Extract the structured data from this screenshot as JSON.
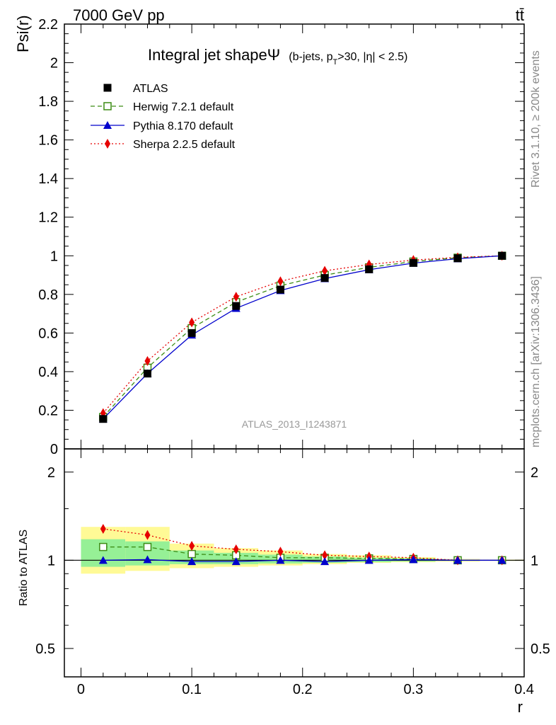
{
  "header": {
    "process": "7000 GeV pp",
    "final_state": "tt̄",
    "rivet_label": "Rivet 3.1.10, ≥ 200k events",
    "mcplots_label": "mcplots.cern.ch [arXiv:1306.3436]",
    "analysis_id": "ATLAS_2013_I1243871"
  },
  "title_main": "Integral jet shapeΨ",
  "title_sub": "(b-jets, p",
  "title_sub_index": "T",
  "title_sub_tail": ">30, |η| < 2.5)",
  "colors": {
    "atlas": "#000000",
    "herwig": "#3c8c14",
    "pythia": "#0000cc",
    "sherpa": "#e60000",
    "band_yellow": "#fffa96",
    "band_green": "#96f096"
  },
  "chart_data": [
    {
      "type": "line",
      "panel": "main",
      "ylabel": "Psi(r)",
      "xlim": [
        -0.015,
        0.4
      ],
      "ylim": [
        0,
        2.2
      ],
      "x_ticks": [
        0,
        0.1,
        0.2,
        0.3,
        0.4
      ],
      "y_ticks": [
        0,
        0.2,
        0.4,
        0.6,
        0.8,
        1,
        1.2,
        1.4,
        1.6,
        1.8,
        2,
        2.2
      ],
      "y_tick_labels": [
        "0",
        "0.2",
        "0.4",
        "0.6",
        "0.8",
        "1",
        "1.2",
        "1.4",
        "1.6",
        "1.8",
        "2",
        "2.2"
      ],
      "legend_position": "top-left",
      "x": [
        0.02,
        0.06,
        0.1,
        0.14,
        0.18,
        0.22,
        0.26,
        0.3,
        0.34,
        0.38
      ],
      "series": [
        {
          "name": "ATLAS",
          "key": "atlas",
          "marker": "square-filled",
          "values": [
            0.155,
            0.39,
            0.6,
            0.74,
            0.825,
            0.885,
            0.93,
            0.963,
            0.987,
            1.0
          ]
        },
        {
          "name": "Herwig 7.2.1 default",
          "key": "herwig",
          "marker": "square-open",
          "line": "dashed",
          "values": [
            0.165,
            0.42,
            0.625,
            0.76,
            0.845,
            0.9,
            0.94,
            0.97,
            0.99,
            1.0
          ]
        },
        {
          "name": "Pythia 8.170 default",
          "key": "pythia",
          "marker": "triangle",
          "line": "solid",
          "values": [
            0.155,
            0.39,
            0.59,
            0.728,
            0.82,
            0.882,
            0.928,
            0.962,
            0.985,
            1.0
          ]
        },
        {
          "name": "Sherpa 2.2.5 default",
          "key": "sherpa",
          "marker": "diamond",
          "line": "dotted",
          "values": [
            0.185,
            0.455,
            0.655,
            0.788,
            0.868,
            0.922,
            0.955,
            0.978,
            0.992,
            1.0
          ]
        }
      ]
    },
    {
      "type": "line",
      "panel": "ratio",
      "ylabel": "Ratio to ATLAS",
      "xlabel": "r",
      "xlim": [
        -0.015,
        0.4
      ],
      "ylim": [
        0.4,
        2.4
      ],
      "scale": "log",
      "x_ticks": [
        0,
        0.1,
        0.2,
        0.3,
        0.4
      ],
      "x_tick_labels": [
        "0",
        "0.1",
        "0.2",
        "0.3",
        "0.4"
      ],
      "y_tick_labels": [
        "0.5",
        "1",
        "2"
      ],
      "y_tick_values": [
        0.5,
        1,
        2
      ],
      "bins": [
        [
          0.0,
          0.04
        ],
        [
          0.04,
          0.08
        ],
        [
          0.08,
          0.12
        ],
        [
          0.12,
          0.16
        ],
        [
          0.16,
          0.2
        ],
        [
          0.2,
          0.24
        ],
        [
          0.24,
          0.28
        ],
        [
          0.28,
          0.32
        ],
        [
          0.32,
          0.36
        ],
        [
          0.36,
          0.4
        ]
      ],
      "band_total": [
        [
          0.9,
          1.3
        ],
        [
          0.92,
          1.3
        ],
        [
          0.94,
          1.14
        ],
        [
          0.95,
          1.1
        ],
        [
          0.96,
          1.08
        ],
        [
          0.97,
          1.05
        ],
        [
          0.98,
          1.04
        ],
        [
          0.985,
          1.025
        ],
        [
          0.99,
          1.01
        ],
        [
          0.995,
          1.005
        ]
      ],
      "band_stat": [
        [
          0.95,
          1.18
        ],
        [
          0.96,
          1.16
        ],
        [
          0.97,
          1.08
        ],
        [
          0.97,
          1.06
        ],
        [
          0.975,
          1.045
        ],
        [
          0.98,
          1.03
        ],
        [
          0.985,
          1.02
        ],
        [
          0.99,
          1.015
        ],
        [
          0.995,
          1.005
        ],
        [
          0.998,
          1.002
        ]
      ],
      "x": [
        0.02,
        0.06,
        0.1,
        0.14,
        0.18,
        0.22,
        0.26,
        0.3,
        0.34,
        0.38
      ],
      "series": [
        {
          "name": "Herwig 7.2.1 default",
          "key": "herwig",
          "marker": "square-open",
          "line": "dashed",
          "values": [
            1.11,
            1.11,
            1.05,
            1.04,
            1.02,
            1.02,
            1.015,
            1.01,
            1.0,
            1.0
          ]
        },
        {
          "name": "Pythia 8.170 default",
          "key": "pythia",
          "marker": "triangle",
          "line": "solid",
          "values": [
            1.0,
            1.005,
            0.99,
            0.99,
            1.0,
            0.99,
            1.0,
            1.005,
            1.0,
            1.0
          ]
        },
        {
          "name": "Sherpa 2.2.5 default",
          "key": "sherpa",
          "marker": "diamond",
          "line": "dotted",
          "values": [
            1.28,
            1.22,
            1.12,
            1.09,
            1.07,
            1.04,
            1.03,
            1.02,
            1.0,
            1.0
          ]
        }
      ]
    }
  ]
}
